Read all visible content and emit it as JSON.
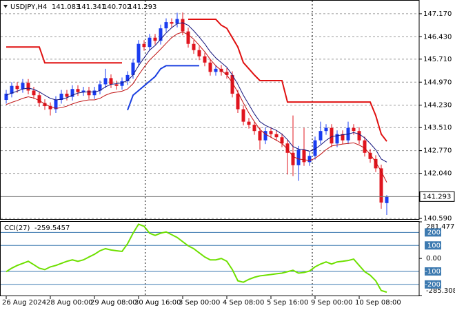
{
  "chart_data": [
    {
      "type": "candlestick",
      "title": "USDJPY,H4",
      "categories": [
        "26 Aug 2024",
        null,
        null,
        null,
        null,
        null,
        null,
        null,
        "28 Aug 00:00",
        null,
        null,
        null,
        null,
        null,
        null,
        null,
        "29 Aug 08:00",
        null,
        null,
        null,
        null,
        null,
        null,
        null,
        "30 Aug 16:00",
        null,
        null,
        null,
        null,
        null,
        null,
        null,
        "3 Sep 00:00",
        null,
        null,
        null,
        null,
        null,
        null,
        null,
        "4 Sep 08:00",
        null,
        null,
        null,
        null,
        null,
        null,
        null,
        "5 Sep 16:00",
        null,
        null,
        null,
        null,
        null,
        null,
        null,
        "9 Sep 00:00",
        null,
        null,
        null,
        null,
        null,
        null,
        null,
        "10 Sep 08:00",
        null,
        null,
        null,
        null,
        null
      ],
      "open": [
        144.4,
        144.6,
        144.85,
        144.75,
        144.95,
        144.7,
        144.55,
        144.3,
        144.2,
        144.1,
        144.4,
        144.6,
        144.5,
        144.75,
        144.65,
        144.7,
        144.55,
        144.7,
        144.9,
        145.1,
        144.9,
        144.85,
        145.0,
        145.2,
        145.6,
        146.2,
        146.1,
        146.4,
        146.3,
        146.7,
        146.9,
        146.85,
        147.0,
        146.6,
        146.2,
        146.0,
        145.8,
        145.6,
        145.3,
        145.4,
        145.3,
        145.2,
        144.6,
        144.1,
        143.7,
        143.6,
        143.4,
        143.1,
        143.4,
        143.3,
        143.2,
        143.0,
        142.7,
        142.3,
        142.8,
        142.4,
        142.6,
        143.1,
        143.4,
        143.5,
        143.0,
        143.3,
        143.1,
        143.5,
        143.4,
        143.1,
        142.7,
        142.5,
        142.2,
        141.083
      ],
      "high": [
        144.72,
        144.97,
        144.97,
        145.07,
        145.07,
        144.82,
        144.67,
        144.42,
        144.32,
        144.52,
        144.72,
        144.72,
        144.87,
        144.87,
        144.82,
        144.82,
        144.82,
        145.02,
        145.4,
        145.22,
        145.02,
        145.12,
        145.32,
        145.72,
        146.32,
        146.32,
        146.52,
        146.52,
        146.82,
        147.02,
        147.02,
        147.2,
        147.21,
        146.72,
        146.32,
        146.12,
        145.92,
        145.72,
        145.52,
        145.52,
        145.42,
        145.32,
        144.72,
        144.22,
        143.82,
        143.72,
        143.52,
        143.52,
        143.52,
        143.42,
        143.32,
        143.12,
        143.9,
        142.92,
        143.5,
        142.72,
        143.22,
        143.7,
        143.62,
        143.62,
        143.42,
        143.42,
        143.7,
        143.62,
        143.52,
        143.22,
        142.82,
        142.62,
        142.32,
        141.341
      ],
      "low": [
        144.28,
        144.48,
        144.63,
        144.63,
        144.58,
        144.43,
        144.18,
        144.08,
        143.9,
        143.98,
        144.28,
        144.38,
        144.38,
        144.53,
        144.53,
        144.43,
        144.43,
        144.58,
        144.78,
        144.78,
        144.73,
        144.73,
        144.88,
        145.08,
        145.48,
        145.98,
        145.98,
        146.18,
        146.18,
        146.58,
        146.73,
        146.73,
        146.48,
        146.08,
        145.88,
        145.68,
        145.48,
        145.18,
        145.18,
        145.18,
        145.08,
        144.48,
        143.98,
        143.58,
        143.48,
        143.28,
        142.8,
        142.98,
        143.18,
        143.08,
        142.88,
        142.0,
        141.95,
        141.8,
        142.28,
        142.28,
        142.48,
        142.98,
        143.28,
        142.88,
        142.88,
        142.98,
        142.98,
        143.28,
        142.98,
        142.58,
        142.38,
        142.08,
        140.9,
        140.702
      ],
      "close": [
        144.6,
        144.85,
        144.75,
        144.95,
        144.7,
        144.55,
        144.3,
        144.2,
        144.1,
        144.4,
        144.6,
        144.5,
        144.75,
        144.65,
        144.7,
        144.55,
        144.7,
        144.9,
        145.1,
        144.9,
        144.85,
        145.0,
        145.2,
        145.6,
        146.2,
        146.1,
        146.4,
        146.3,
        146.7,
        146.9,
        146.85,
        147.0,
        146.6,
        146.2,
        146.0,
        145.8,
        145.6,
        145.3,
        145.4,
        145.3,
        145.2,
        144.6,
        144.1,
        143.7,
        143.6,
        143.4,
        143.1,
        143.4,
        143.3,
        143.2,
        143.0,
        142.7,
        142.3,
        142.8,
        142.4,
        142.6,
        143.1,
        143.4,
        143.5,
        143.0,
        143.3,
        143.1,
        143.5,
        143.4,
        143.1,
        142.7,
        142.5,
        142.2,
        141.1,
        141.293
      ],
      "up_color": "#1a3cf0",
      "down_color": "#e0141e",
      "series": [
        {
          "color": "#12127a",
          "width": 1,
          "values": [
            144.55,
            144.62,
            144.68,
            144.75,
            144.78,
            144.74,
            144.66,
            144.55,
            144.45,
            144.4,
            144.42,
            144.47,
            144.55,
            144.62,
            144.65,
            144.66,
            144.65,
            144.7,
            144.82,
            144.9,
            144.92,
            144.95,
            145.02,
            145.2,
            145.5,
            145.75,
            146.0,
            146.15,
            146.35,
            146.55,
            146.72,
            146.85,
            146.88,
            146.8,
            146.62,
            146.42,
            146.2,
            145.95,
            145.75,
            145.6,
            145.45,
            145.2,
            144.9,
            144.55,
            144.25,
            143.95,
            143.7,
            143.58,
            143.5,
            143.42,
            143.3,
            143.12,
            142.9,
            142.82,
            142.8,
            142.75,
            142.82,
            142.95,
            143.1,
            143.22,
            143.25,
            143.28,
            143.3,
            143.35,
            143.3,
            143.18,
            143.0,
            142.8,
            142.5,
            142.4
          ]
        },
        {
          "color": "#c01010",
          "width": 1,
          "values": [
            144.25,
            144.32,
            144.38,
            144.45,
            144.5,
            144.46,
            144.38,
            144.27,
            144.18,
            144.13,
            144.15,
            144.2,
            144.27,
            144.33,
            144.37,
            144.4,
            144.4,
            144.45,
            144.55,
            144.62,
            144.65,
            144.68,
            144.75,
            144.92,
            145.2,
            145.45,
            145.68,
            145.85,
            146.03,
            146.22,
            146.4,
            146.52,
            146.58,
            146.5,
            146.35,
            146.15,
            145.95,
            145.7,
            145.5,
            145.35,
            145.2,
            144.95,
            144.65,
            144.3,
            143.98,
            143.7,
            143.45,
            143.3,
            143.2,
            143.1,
            143.0,
            142.82,
            142.58,
            142.5,
            142.48,
            142.45,
            142.52,
            142.65,
            142.8,
            142.92,
            142.95,
            142.98,
            143.0,
            143.02,
            142.95,
            142.85,
            142.65,
            142.4,
            142.1,
            141.75
          ]
        },
        {
          "color": "#e01010",
          "width": 2,
          "values": [
            146.1,
            146.1,
            146.1,
            146.1,
            146.1,
            146.1,
            146.1,
            145.59,
            145.59,
            145.59,
            145.59,
            145.59,
            145.59,
            145.59,
            145.59,
            145.59,
            145.59,
            145.59,
            145.59,
            145.59,
            145.59,
            145.59,
            null,
            null,
            null,
            null,
            null,
            null,
            null,
            null,
            null,
            null,
            null,
            146.99,
            146.99,
            146.99,
            146.99,
            146.99,
            146.99,
            146.8,
            146.7,
            146.4,
            146.1,
            145.6,
            145.4,
            145.2,
            145.02,
            145.02,
            145.02,
            145.02,
            145.02,
            144.33,
            144.33,
            144.33,
            144.33,
            144.33,
            144.33,
            144.33,
            144.33,
            144.33,
            144.33,
            144.33,
            144.33,
            144.33,
            144.33,
            144.33,
            144.33,
            143.9,
            143.3,
            143.07
          ]
        },
        {
          "color": "#1a3fe0",
          "width": 2,
          "values": [
            null,
            null,
            null,
            null,
            null,
            null,
            null,
            null,
            null,
            null,
            null,
            null,
            null,
            null,
            null,
            null,
            null,
            null,
            null,
            null,
            null,
            null,
            144.07,
            144.55,
            144.7,
            144.85,
            145.0,
            145.15,
            145.4,
            145.5,
            145.5,
            145.5,
            145.5,
            145.5,
            145.5,
            145.5,
            null,
            null,
            null,
            null,
            null,
            null,
            null,
            null,
            null,
            null,
            null,
            null,
            null,
            null,
            null,
            null,
            null,
            null,
            null,
            null,
            null,
            null,
            null,
            null,
            null,
            null,
            null,
            null,
            null,
            null,
            null,
            null,
            null,
            null
          ]
        }
      ],
      "ylim": [
        140.57,
        147.5
      ],
      "yticks": [
        {
          "value": 147.17,
          "label": "147.170"
        },
        {
          "value": 146.43,
          "label": "146.430"
        },
        {
          "value": 145.71,
          "label": "145.710"
        },
        {
          "value": 144.97,
          "label": "144.970"
        },
        {
          "value": 144.23,
          "label": "144.230"
        },
        {
          "value": 143.51,
          "label": "143.510"
        },
        {
          "value": 142.77,
          "label": "142.770"
        },
        {
          "value": 142.04,
          "label": "142.040"
        },
        {
          "value": 140.59,
          "label": "140.590"
        }
      ],
      "grid": true
    },
    {
      "type": "line",
      "title": "CCI(27)",
      "series": [
        {
          "color": "#6ee000",
          "values": [
            -102,
            -75,
            -54,
            -38,
            -22,
            -48,
            -75,
            -86,
            -65,
            -54,
            -38,
            -22,
            -11,
            -22,
            -11,
            11,
            32,
            59,
            75,
            65,
            59,
            54,
            113,
            194,
            263,
            247,
            194,
            177,
            194,
            204,
            183,
            161,
            129,
            97,
            75,
            43,
            11,
            -11,
            -11,
            0,
            -22,
            -86,
            -172,
            -183,
            -161,
            -145,
            -134,
            -129,
            -124,
            -118,
            -113,
            -102,
            -91,
            -113,
            -108,
            -97,
            -65,
            -43,
            -27,
            -43,
            -27,
            -22,
            -16,
            -5,
            -54,
            -102,
            -129,
            -172,
            -247,
            -259.5457
          ]
        }
      ],
      "ylim": [
        -285.3087,
        281.4778
      ],
      "yticks": [
        281.4778,
        {
          "value": 0,
          "label": "0.00"
        },
        -285.3087
      ],
      "levels": [
        200,
        100,
        -100,
        -200
      ],
      "level_color": "#3d7ab0"
    }
  ]
}
